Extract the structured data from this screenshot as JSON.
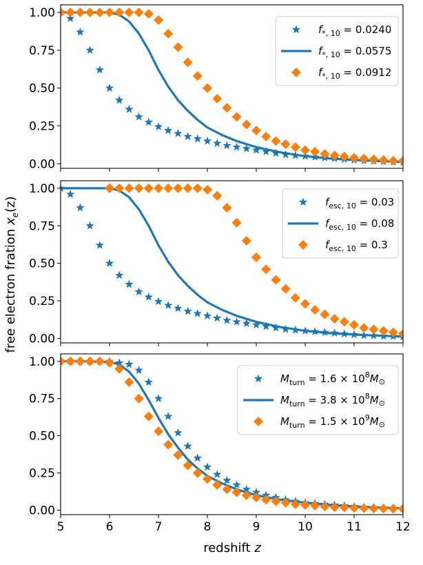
{
  "colors": {
    "blue": "#1f77b4",
    "orange": "#ff7f0e"
  },
  "ylabel": "free electron fration x_e(z)",
  "ylabel_parts": {
    "main": "free electron fration ",
    "var": "x",
    "sub": "e",
    "arg": "(z)"
  },
  "xlabel_parts": {
    "main": "redshift ",
    "var": "z"
  },
  "xticks": [
    "5",
    "6",
    "7",
    "8",
    "9",
    "10",
    "11",
    "12"
  ],
  "yticks": [
    "0.00",
    "0.25",
    "0.50",
    "0.75",
    "1.00"
  ],
  "chart_data": [
    {
      "type": "line",
      "title": "",
      "xlabel": "redshift z",
      "ylabel": "free electron fration x_e(z)",
      "xlim": [
        5,
        12
      ],
      "ylim": [
        -0.03,
        1.05
      ],
      "legend_position": "top-right",
      "series": [
        {
          "name": "f*,10 = 0.0240",
          "legend": {
            "sym": "f",
            "sub": "*, 10",
            "rest": " = 0.0240"
          },
          "marker": "star",
          "color": "blue",
          "x": [
            5.0,
            5.2,
            5.4,
            5.6,
            5.8,
            6.0,
            6.2,
            6.4,
            6.6,
            6.8,
            7.0,
            7.2,
            7.4,
            7.6,
            7.8,
            8.0,
            8.2,
            8.4,
            8.6,
            8.8,
            9.0,
            9.2,
            9.4,
            9.6,
            9.8,
            10.0,
            10.2,
            10.4,
            10.6,
            10.8,
            11.0,
            11.2,
            11.4,
            11.6,
            11.8,
            12.0
          ],
          "y": [
            1.0,
            0.96,
            0.87,
            0.75,
            0.62,
            0.5,
            0.42,
            0.36,
            0.31,
            0.275,
            0.245,
            0.22,
            0.2,
            0.18,
            0.165,
            0.15,
            0.135,
            0.12,
            0.11,
            0.1,
            0.09,
            0.08,
            0.07,
            0.06,
            0.055,
            0.05,
            0.045,
            0.04,
            0.035,
            0.03,
            0.025,
            0.02,
            0.018,
            0.015,
            0.013,
            0.01
          ]
        },
        {
          "name": "f*,10 = 0.0575",
          "legend": {
            "sym": "f",
            "sub": "*, 10",
            "rest": " = 0.0575"
          },
          "marker": "line",
          "color": "blue",
          "x": [
            5.0,
            5.5,
            6.0,
            6.2,
            6.4,
            6.6,
            6.8,
            7.0,
            7.2,
            7.4,
            7.6,
            7.8,
            8.0,
            8.3,
            8.6,
            9.0,
            9.5,
            10.0,
            10.5,
            11.0,
            11.5,
            12.0
          ],
          "y": [
            1.0,
            1.0,
            1.0,
            0.985,
            0.94,
            0.86,
            0.75,
            0.62,
            0.51,
            0.42,
            0.35,
            0.29,
            0.24,
            0.19,
            0.15,
            0.11,
            0.075,
            0.05,
            0.035,
            0.025,
            0.018,
            0.012
          ]
        },
        {
          "name": "f*,10 = 0.0912",
          "legend": {
            "sym": "f",
            "sub": "*, 10",
            "rest": " = 0.0912"
          },
          "marker": "diamond",
          "color": "orange",
          "x": [
            5.0,
            5.2,
            5.4,
            5.6,
            5.8,
            6.0,
            6.2,
            6.4,
            6.6,
            6.8,
            7.0,
            7.2,
            7.4,
            7.6,
            7.8,
            8.0,
            8.2,
            8.4,
            8.6,
            8.8,
            9.0,
            9.2,
            9.4,
            9.6,
            9.8,
            10.0,
            10.2,
            10.4,
            10.6,
            10.8,
            11.0,
            11.2,
            11.4,
            11.6,
            11.8,
            12.0
          ],
          "y": [
            1.0,
            1.0,
            1.0,
            1.0,
            1.0,
            1.0,
            1.0,
            1.0,
            1.0,
            0.99,
            0.95,
            0.86,
            0.77,
            0.67,
            0.58,
            0.5,
            0.43,
            0.37,
            0.31,
            0.26,
            0.22,
            0.18,
            0.15,
            0.13,
            0.11,
            0.09,
            0.08,
            0.065,
            0.055,
            0.048,
            0.04,
            0.035,
            0.03,
            0.025,
            0.02,
            0.02
          ]
        }
      ]
    },
    {
      "type": "line",
      "title": "",
      "xlabel": "redshift z",
      "ylabel": "free electron fration x_e(z)",
      "xlim": [
        5,
        12
      ],
      "ylim": [
        -0.03,
        1.05
      ],
      "legend_position": "top-right",
      "series": [
        {
          "name": "fesc,10 = 0.03",
          "legend": {
            "sym": "f",
            "sub": "esc, 10",
            "rest": " = 0.03"
          },
          "marker": "star",
          "color": "blue",
          "x": [
            5.0,
            5.2,
            5.4,
            5.6,
            5.8,
            6.0,
            6.2,
            6.4,
            6.6,
            6.8,
            7.0,
            7.2,
            7.4,
            7.6,
            7.8,
            8.0,
            8.2,
            8.4,
            8.6,
            8.8,
            9.0,
            9.2,
            9.4,
            9.6,
            9.8,
            10.0,
            10.2,
            10.4,
            10.6,
            10.8,
            11.0,
            11.2,
            11.4,
            11.6,
            11.8,
            12.0
          ],
          "y": [
            1.0,
            0.96,
            0.87,
            0.75,
            0.62,
            0.5,
            0.42,
            0.36,
            0.31,
            0.275,
            0.245,
            0.22,
            0.2,
            0.18,
            0.165,
            0.15,
            0.135,
            0.12,
            0.11,
            0.1,
            0.09,
            0.08,
            0.07,
            0.06,
            0.055,
            0.05,
            0.045,
            0.04,
            0.035,
            0.03,
            0.025,
            0.02,
            0.018,
            0.015,
            0.013,
            0.01
          ]
        },
        {
          "name": "fesc,10 = 0.08",
          "legend": {
            "sym": "f",
            "sub": "esc, 10",
            "rest": " = 0.08"
          },
          "marker": "line",
          "color": "blue",
          "x": [
            5.0,
            5.5,
            6.0,
            6.2,
            6.4,
            6.6,
            6.8,
            7.0,
            7.2,
            7.4,
            7.6,
            7.8,
            8.0,
            8.3,
            8.6,
            9.0,
            9.5,
            10.0,
            10.5,
            11.0,
            11.5,
            12.0
          ],
          "y": [
            1.0,
            1.0,
            1.0,
            0.985,
            0.94,
            0.86,
            0.75,
            0.62,
            0.51,
            0.42,
            0.35,
            0.29,
            0.24,
            0.19,
            0.15,
            0.11,
            0.075,
            0.05,
            0.035,
            0.025,
            0.018,
            0.012
          ]
        },
        {
          "name": "fesc,10 = 0.3",
          "legend": {
            "sym": "f",
            "sub": "esc, 10",
            "rest": " = 0.3"
          },
          "marker": "diamond",
          "color": "orange",
          "x": [
            6.0,
            6.2,
            6.4,
            6.6,
            6.8,
            7.0,
            7.2,
            7.4,
            7.6,
            7.8,
            8.0,
            8.2,
            8.4,
            8.6,
            8.8,
            9.0,
            9.2,
            9.4,
            9.6,
            9.8,
            10.0,
            10.2,
            10.4,
            10.6,
            10.8,
            11.0,
            11.2,
            11.4,
            11.6,
            11.8,
            12.0
          ],
          "y": [
            1.0,
            1.0,
            1.0,
            1.0,
            1.0,
            1.0,
            1.0,
            1.0,
            1.0,
            1.0,
            0.99,
            0.95,
            0.87,
            0.77,
            0.65,
            0.54,
            0.46,
            0.39,
            0.33,
            0.27,
            0.23,
            0.19,
            0.16,
            0.13,
            0.11,
            0.09,
            0.07,
            0.06,
            0.05,
            0.04,
            0.03
          ]
        }
      ]
    },
    {
      "type": "line",
      "title": "",
      "xlabel": "redshift z",
      "ylabel": "free electron fration x_e(z)",
      "xlim": [
        5,
        12
      ],
      "ylim": [
        -0.03,
        1.05
      ],
      "legend_position": "top-right",
      "series": [
        {
          "name": "Mturn = 1.6 x 10^8 Msun",
          "legend": {
            "sym": "M",
            "sub": "turn",
            "rest": " = 1.6 × 10",
            "exp": "8",
            "tail": "M",
            "tailsub": "⊙"
          },
          "marker": "star",
          "color": "blue",
          "x": [
            5.0,
            5.2,
            5.4,
            5.6,
            5.8,
            6.0,
            6.2,
            6.4,
            6.6,
            6.8,
            7.0,
            7.2,
            7.4,
            7.6,
            7.8,
            8.0,
            8.2,
            8.4,
            8.6,
            8.8,
            9.0,
            9.2,
            9.4,
            9.6,
            9.8,
            10.0,
            10.2,
            10.4,
            10.6,
            10.8,
            11.0,
            11.2,
            11.4,
            11.6,
            11.8,
            12.0
          ],
          "y": [
            1.0,
            1.0,
            1.0,
            1.0,
            1.0,
            1.0,
            0.99,
            0.98,
            0.94,
            0.86,
            0.75,
            0.63,
            0.52,
            0.43,
            0.35,
            0.29,
            0.24,
            0.2,
            0.17,
            0.14,
            0.12,
            0.1,
            0.085,
            0.07,
            0.06,
            0.05,
            0.045,
            0.04,
            0.035,
            0.03,
            0.025,
            0.02,
            0.018,
            0.015,
            0.013,
            0.01
          ]
        },
        {
          "name": "Mturn = 3.8 x 10^8 Msun",
          "legend": {
            "sym": "M",
            "sub": "turn",
            "rest": " = 3.8 × 10",
            "exp": "8",
            "tail": "M",
            "tailsub": "⊙"
          },
          "marker": "line",
          "color": "blue",
          "x": [
            5.0,
            5.5,
            6.0,
            6.2,
            6.4,
            6.6,
            6.8,
            7.0,
            7.2,
            7.4,
            7.6,
            7.8,
            8.0,
            8.3,
            8.6,
            9.0,
            9.5,
            10.0,
            10.5,
            11.0,
            11.5,
            12.0
          ],
          "y": [
            1.0,
            1.0,
            0.995,
            0.98,
            0.93,
            0.85,
            0.74,
            0.62,
            0.51,
            0.42,
            0.34,
            0.28,
            0.23,
            0.18,
            0.14,
            0.1,
            0.07,
            0.05,
            0.035,
            0.025,
            0.018,
            0.012
          ]
        },
        {
          "name": "Mturn = 1.5 x 10^9 Msun",
          "legend": {
            "sym": "M",
            "sub": "turn",
            "rest": " = 1.5 × 10",
            "exp": "9",
            "tail": "M",
            "tailsub": "⊙"
          },
          "marker": "diamond",
          "color": "orange",
          "x": [
            5.0,
            5.2,
            5.4,
            5.6,
            5.8,
            6.0,
            6.2,
            6.4,
            6.6,
            6.8,
            7.0,
            7.2,
            7.4,
            7.6,
            7.8,
            8.0,
            8.2,
            8.4,
            8.6,
            8.8,
            9.0,
            9.2,
            9.4,
            9.6,
            9.8,
            10.0,
            10.2,
            10.4,
            10.6,
            10.8,
            11.0,
            11.2,
            11.4,
            11.6,
            11.8,
            12.0
          ],
          "y": [
            1.0,
            1.0,
            1.0,
            1.0,
            1.0,
            0.99,
            0.95,
            0.86,
            0.75,
            0.63,
            0.53,
            0.44,
            0.37,
            0.3,
            0.25,
            0.21,
            0.17,
            0.14,
            0.12,
            0.1,
            0.085,
            0.07,
            0.06,
            0.05,
            0.04,
            0.035,
            0.03,
            0.025,
            0.02,
            0.018,
            0.015,
            0.013,
            0.012,
            0.011,
            0.01,
            0.01
          ]
        }
      ]
    }
  ]
}
